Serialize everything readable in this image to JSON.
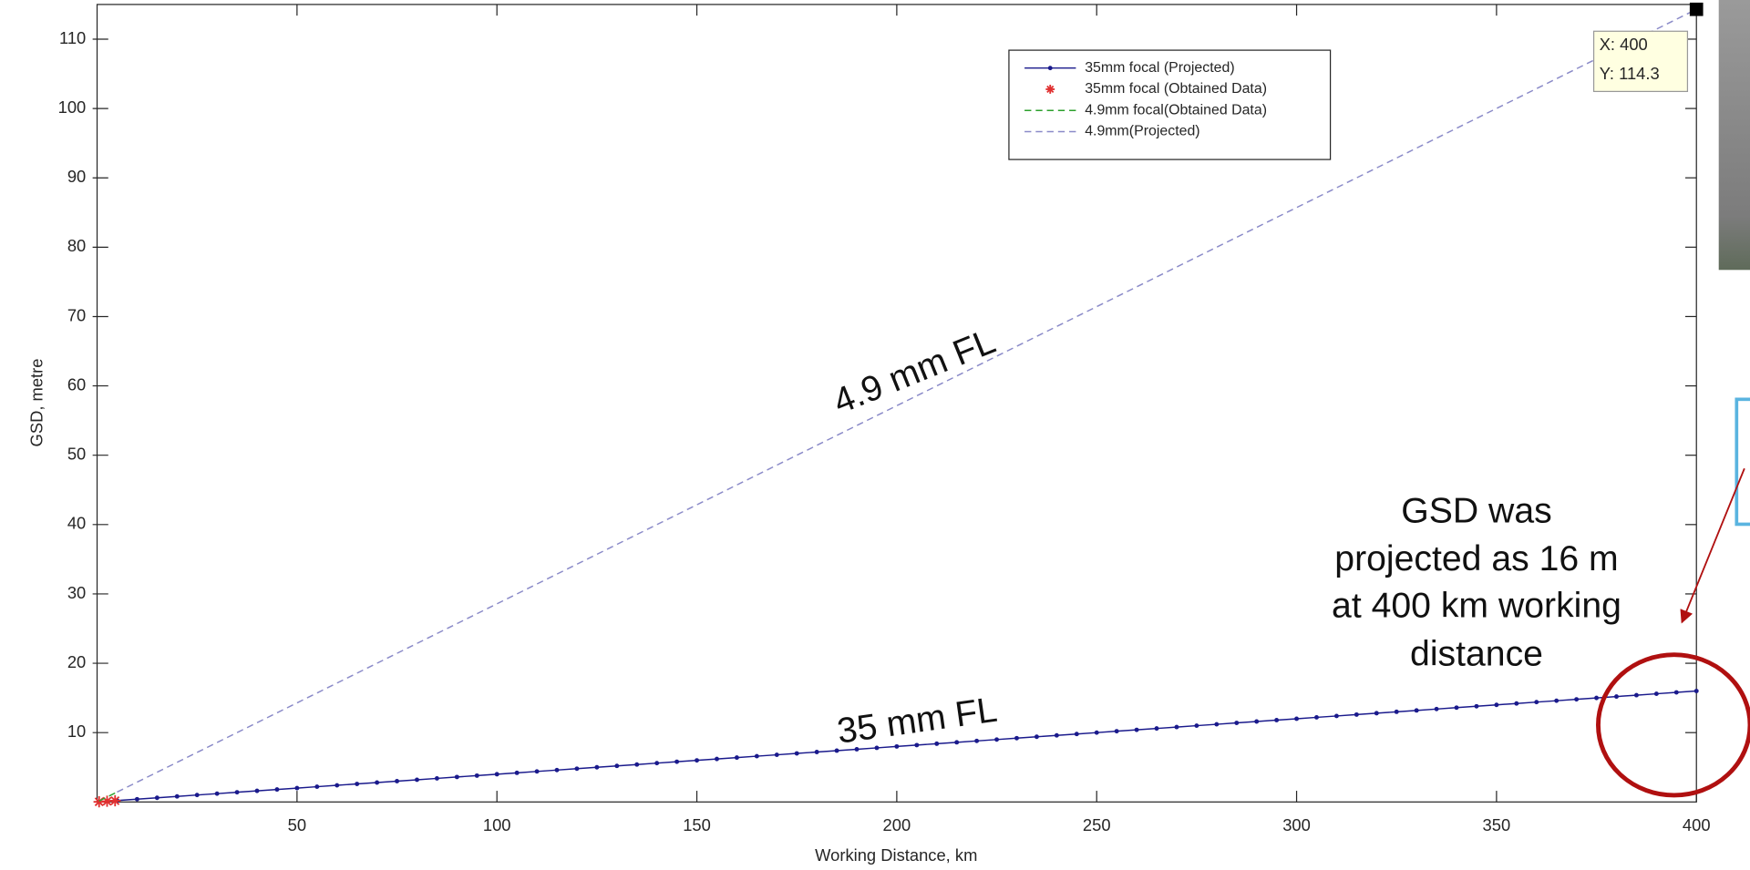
{
  "chart_data": {
    "type": "line",
    "xlabel": "Working Distance, km",
    "ylabel": "GSD, metre",
    "xlim": [
      0,
      400
    ],
    "ylim": [
      0,
      115
    ],
    "xticks": [
      50,
      100,
      150,
      200,
      250,
      300,
      350,
      400
    ],
    "yticks": [
      10,
      20,
      30,
      40,
      50,
      60,
      70,
      80,
      90,
      100,
      110
    ],
    "series": [
      {
        "name": "35mm focal  (Projected)",
        "color": "#1a1a8c",
        "line_style": "solid",
        "marker": "dot",
        "x": [
          5,
          10,
          15,
          20,
          25,
          30,
          35,
          40,
          45,
          50,
          55,
          60,
          65,
          70,
          75,
          80,
          85,
          90,
          95,
          100,
          105,
          110,
          115,
          120,
          125,
          130,
          135,
          140,
          145,
          150,
          155,
          160,
          165,
          170,
          175,
          180,
          185,
          190,
          195,
          200,
          205,
          210,
          215,
          220,
          225,
          230,
          235,
          240,
          245,
          250,
          255,
          260,
          265,
          270,
          275,
          280,
          285,
          290,
          295,
          300,
          305,
          310,
          315,
          320,
          325,
          330,
          335,
          340,
          345,
          350,
          355,
          360,
          365,
          370,
          375,
          380,
          385,
          390,
          395,
          400
        ],
        "values": [
          0.2,
          0.4,
          0.6,
          0.8,
          1,
          1.2,
          1.4,
          1.6,
          1.8,
          2,
          2.2,
          2.4,
          2.6,
          2.8,
          3,
          3.2,
          3.4,
          3.6,
          3.8,
          4,
          4.2,
          4.4,
          4.6,
          4.8,
          5,
          5.2,
          5.4,
          5.6,
          5.8,
          6,
          6.2,
          6.4,
          6.6,
          6.8,
          7,
          7.2,
          7.4,
          7.6,
          7.8,
          8,
          8.2,
          8.4,
          8.6,
          8.8,
          9,
          9.2,
          9.4,
          9.6,
          9.8,
          10,
          10.2,
          10.4,
          10.6,
          10.8,
          11,
          11.2,
          11.4,
          11.6,
          11.8,
          12,
          12.2,
          12.4,
          12.6,
          12.8,
          13,
          13.2,
          13.4,
          13.6,
          13.8,
          14,
          14.2,
          14.4,
          14.6,
          14.8,
          15,
          15.2,
          15.4,
          15.6,
          15.8,
          16
        ]
      },
      {
        "name": "35mm focal (Obtained Data)",
        "color": "#e03030",
        "line_style": "none",
        "marker": "star",
        "x": [
          0.5,
          2.5,
          4.5
        ],
        "values": [
          0.02,
          0.1,
          0.18
        ]
      },
      {
        "name": "4.9mm focal(Obtained Data)",
        "color": "#2ca02c",
        "line_style": "dashed",
        "marker": "none",
        "x": [
          0.5,
          2.5,
          4.5
        ],
        "values": [
          0.14,
          0.71,
          1.29
        ]
      },
      {
        "name": "4.9mm(Projected)",
        "color": "#8a8ac8",
        "line_style": "dashed",
        "marker": "none",
        "x": [
          5,
          100,
          200,
          300,
          400
        ],
        "values": [
          1.43,
          28.57,
          57.14,
          85.71,
          114.3
        ]
      }
    ],
    "datatip": [
      "X: 400",
      "Y: 114.3"
    ],
    "annotations": [
      "4.9 mm FL",
      "35 mm FL"
    ],
    "callout": [
      "GSD was",
      "projected as 16 m",
      "at 400 km working",
      "distance"
    ]
  }
}
